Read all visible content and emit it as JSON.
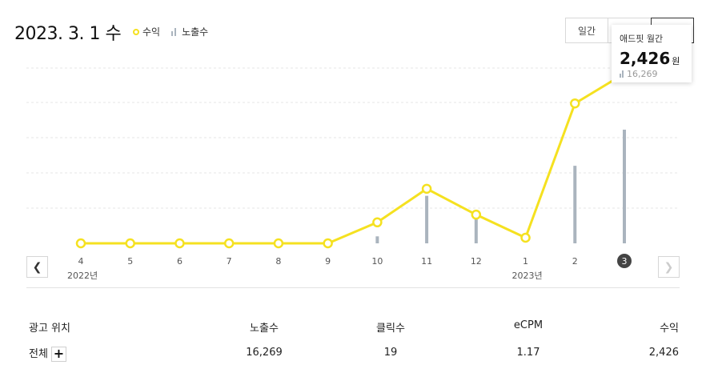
{
  "header": {
    "date": "2023. 3. 1",
    "weekday": "수",
    "legend_revenue": "수익",
    "legend_impressions": "노출수"
  },
  "tabs": [
    {
      "label": "일간"
    },
    {
      "label": ""
    },
    {
      "label": ""
    }
  ],
  "tooltip": {
    "label": "애드핏 월간",
    "value": "2,426",
    "unit": "원",
    "sub_value": "16,269"
  },
  "chart_data": {
    "type": "line",
    "categories": [
      "4",
      "5",
      "6",
      "7",
      "8",
      "9",
      "10",
      "11",
      "12",
      "1",
      "2",
      "3"
    ],
    "year_labels": [
      {
        "index": 0,
        "label": "2022년"
      },
      {
        "index": 9,
        "label": "2023년"
      }
    ],
    "selected_index": 11,
    "series": [
      {
        "name": "수익",
        "kind": "line",
        "values": [
          0,
          0,
          0,
          0,
          0,
          0,
          300,
          780,
          410,
          80,
          2000,
          2426
        ]
      },
      {
        "name": "노출수",
        "kind": "bar",
        "values": [
          0,
          0,
          0,
          0,
          0,
          0,
          1000,
          6800,
          3600,
          0,
          11100,
          16269
        ]
      }
    ],
    "grid": true,
    "colors": {
      "line": "#f5e120",
      "bar": "#aab4be",
      "selected": "#444444"
    }
  },
  "table": {
    "headers": [
      "광고 위치",
      "노출수",
      "클릭수",
      "eCPM",
      "수익"
    ],
    "rows": [
      {
        "name": "전체",
        "impressions": "16,269",
        "clicks": "19",
        "ecpm": "1.17",
        "revenue": "2,426"
      }
    ]
  }
}
